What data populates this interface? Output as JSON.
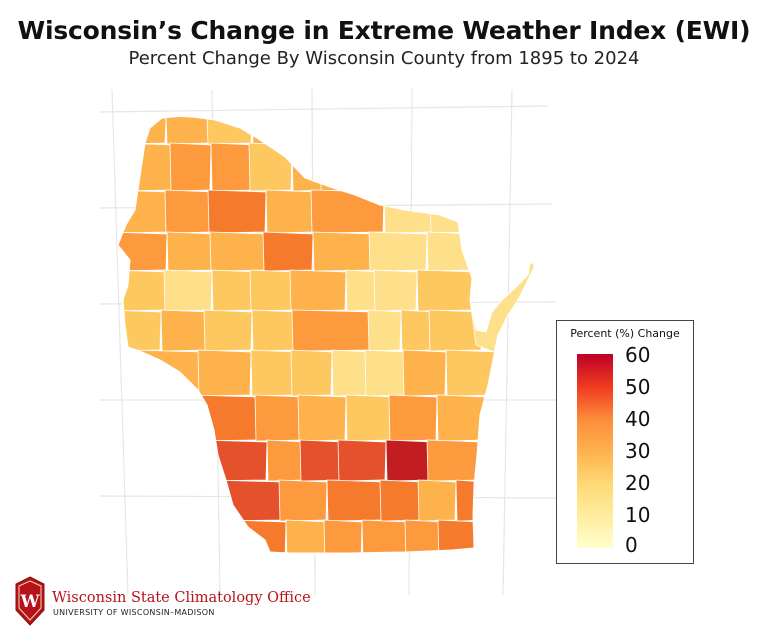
{
  "title": "Wisconsin’s Change in Extreme Weather Index (EWI)",
  "subtitle": "Percent Change By Wisconsin County from 1895 to 2024",
  "legend": {
    "title": "Percent (%) Change",
    "ticks": [
      "60",
      "50",
      "40",
      "30",
      "20",
      "10",
      "0"
    ],
    "min": 0,
    "max": 60,
    "colors": [
      "#ffffcc",
      "#ffeda0",
      "#fed976",
      "#feb24c",
      "#fd8d3c",
      "#f03b20",
      "#bd0026"
    ]
  },
  "map": {
    "region": "Wisconsin",
    "colors": {
      "outline": "#ffffff",
      "graticule": "#e6e6e6"
    }
  },
  "logo": {
    "mark": "W",
    "name": "Wisconsin State Climatology Office",
    "subname": "UNIVERSITY OF WISCONSIN–MADISON"
  }
}
